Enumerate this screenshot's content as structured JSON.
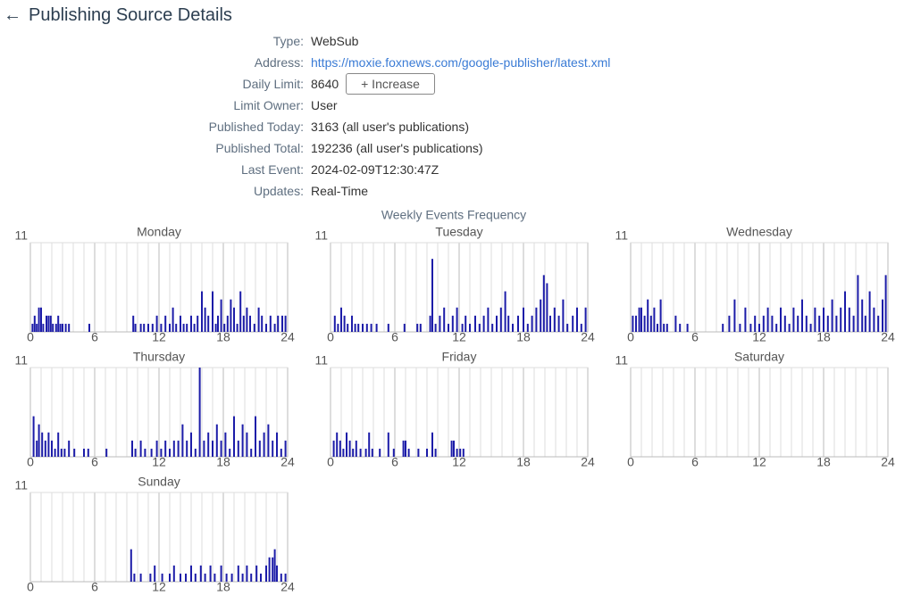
{
  "header": {
    "title": "Publishing Source Details"
  },
  "details": [
    {
      "label": "Type:",
      "value": "WebSub"
    },
    {
      "label": "Address:",
      "value": "https://moxie.foxnews.com/google-publisher/latest.xml"
    },
    {
      "label": "Daily Limit:",
      "value": "8640"
    },
    {
      "label": "Limit Owner:",
      "value": "User"
    },
    {
      "label": "Published Today:",
      "value": "3163 (all user's publications)"
    },
    {
      "label": "Published Total:",
      "value": "192236 (all user's publications)"
    },
    {
      "label": "Last Event:",
      "value": "2024-02-09T12:30:47Z"
    },
    {
      "label": "Updates:",
      "value": "Real-Time"
    }
  ],
  "increase_button": "+ Increase",
  "frequency": {
    "title": "Weekly Events Frequency"
  },
  "chart_data": [
    {
      "type": "bar",
      "title": "Monday",
      "color": "#1c1ca8",
      "xlim": [
        0,
        24
      ],
      "xticks": [
        0,
        6,
        12,
        18,
        24
      ],
      "minor_xticks": [
        0,
        1,
        2,
        3,
        4,
        5,
        6,
        7,
        8,
        9,
        10,
        11,
        12,
        13,
        14,
        15,
        16,
        17,
        18,
        19,
        20,
        21,
        22,
        23,
        24
      ],
      "ylim": [
        0,
        11
      ],
      "yticks": [
        11
      ],
      "x": [
        0.2,
        0.4,
        0.6,
        0.8,
        1.0,
        1.2,
        1.5,
        1.7,
        1.9,
        2.1,
        2.4,
        2.6,
        2.8,
        3.0,
        3.3,
        3.6,
        5.5,
        9.6,
        9.8,
        10.3,
        10.6,
        11.0,
        11.4,
        11.8,
        12.2,
        12.6,
        13.0,
        13.3,
        13.6,
        14.0,
        14.3,
        14.6,
        15.0,
        15.3,
        15.6,
        16.0,
        16.3,
        16.6,
        17.0,
        17.3,
        17.5,
        17.8,
        18.1,
        18.4,
        18.7,
        19.0,
        19.3,
        19.6,
        19.9,
        20.2,
        20.5,
        20.9,
        21.3,
        21.6,
        22.0,
        22.4,
        22.8,
        23.1,
        23.5,
        23.8
      ],
      "values": [
        1,
        2,
        1,
        3,
        3,
        1,
        2,
        2,
        2,
        1,
        1,
        2,
        1,
        1,
        1,
        1,
        1,
        2,
        1,
        1,
        1,
        1,
        1,
        2,
        1,
        2,
        1,
        3,
        1,
        2,
        1,
        1,
        2,
        1,
        2,
        5,
        3,
        2,
        5,
        1,
        2,
        4,
        1,
        2,
        4,
        3,
        1,
        5,
        2,
        3,
        2,
        1,
        3,
        2,
        1,
        2,
        1,
        2,
        2,
        2
      ]
    },
    {
      "type": "bar",
      "title": "Tuesday",
      "color": "#1c1ca8",
      "xlim": [
        0,
        24
      ],
      "xticks": [
        0,
        6,
        12,
        18,
        24
      ],
      "minor_xticks": [
        0,
        1,
        2,
        3,
        4,
        5,
        6,
        7,
        8,
        9,
        10,
        11,
        12,
        13,
        14,
        15,
        16,
        17,
        18,
        19,
        20,
        21,
        22,
        23,
        24
      ],
      "ylim": [
        0,
        11
      ],
      "yticks": [
        11
      ],
      "x": [
        0.4,
        0.7,
        1.0,
        1.3,
        1.6,
        2.0,
        2.3,
        2.6,
        3.0,
        3.4,
        3.8,
        4.3,
        5.4,
        6.9,
        8.1,
        8.4,
        9.3,
        9.5,
        9.8,
        10.2,
        10.6,
        11.0,
        11.4,
        11.8,
        12.3,
        12.6,
        13.0,
        13.5,
        13.9,
        14.3,
        14.7,
        15.1,
        15.5,
        15.9,
        16.3,
        16.6,
        17.0,
        17.5,
        18.0,
        18.4,
        18.8,
        19.2,
        19.6,
        19.9,
        20.2,
        20.5,
        20.9,
        21.3,
        21.7,
        22.1,
        22.6,
        23.0,
        23.4,
        23.8
      ],
      "values": [
        2,
        1,
        3,
        2,
        1,
        2,
        1,
        1,
        1,
        1,
        1,
        1,
        1,
        1,
        1,
        1,
        2,
        9,
        1,
        2,
        3,
        1,
        2,
        3,
        1,
        2,
        1,
        2,
        1,
        2,
        3,
        1,
        2,
        3,
        5,
        2,
        1,
        2,
        3,
        1,
        2,
        3,
        4,
        7,
        6,
        2,
        3,
        2,
        4,
        1,
        2,
        3,
        1,
        3
      ]
    },
    {
      "type": "bar",
      "title": "Wednesday",
      "color": "#1c1ca8",
      "xlim": [
        0,
        24
      ],
      "xticks": [
        0,
        6,
        12,
        18,
        24
      ],
      "minor_xticks": [
        0,
        1,
        2,
        3,
        4,
        5,
        6,
        7,
        8,
        9,
        10,
        11,
        12,
        13,
        14,
        15,
        16,
        17,
        18,
        19,
        20,
        21,
        22,
        23,
        24
      ],
      "ylim": [
        0,
        11
      ],
      "yticks": [
        11
      ],
      "x": [
        0.2,
        0.5,
        0.8,
        1.0,
        1.3,
        1.6,
        1.9,
        2.2,
        2.5,
        2.8,
        3.1,
        3.4,
        4.2,
        4.6,
        5.3,
        8.6,
        9.2,
        9.7,
        10.2,
        10.7,
        11.2,
        11.6,
        12.0,
        12.4,
        12.8,
        13.2,
        13.6,
        14.0,
        14.4,
        14.8,
        15.2,
        15.6,
        16.0,
        16.4,
        16.8,
        17.2,
        17.6,
        18.0,
        18.4,
        18.8,
        19.2,
        19.6,
        20.0,
        20.4,
        20.8,
        21.2,
        21.6,
        21.9,
        22.3,
        22.7,
        23.1,
        23.5,
        23.8
      ],
      "values": [
        2,
        2,
        3,
        3,
        2,
        4,
        2,
        3,
        1,
        4,
        1,
        1,
        2,
        1,
        1,
        1,
        2,
        4,
        1,
        3,
        1,
        2,
        1,
        2,
        3,
        2,
        1,
        3,
        2,
        1,
        3,
        2,
        4,
        2,
        1,
        3,
        2,
        3,
        2,
        4,
        2,
        3,
        5,
        3,
        2,
        7,
        4,
        2,
        5,
        3,
        2,
        4,
        7
      ]
    },
    {
      "type": "bar",
      "title": "Thursday",
      "color": "#1c1ca8",
      "xlim": [
        0,
        24
      ],
      "xticks": [
        0,
        6,
        12,
        18,
        24
      ],
      "minor_xticks": [
        0,
        1,
        2,
        3,
        4,
        5,
        6,
        7,
        8,
        9,
        10,
        11,
        12,
        13,
        14,
        15,
        16,
        17,
        18,
        19,
        20,
        21,
        22,
        23,
        24
      ],
      "ylim": [
        0,
        11
      ],
      "yticks": [
        11
      ],
      "x": [
        0.3,
        0.6,
        0.8,
        1.1,
        1.4,
        1.7,
        2.0,
        2.3,
        2.6,
        2.9,
        3.2,
        3.6,
        4.1,
        5.0,
        5.4,
        7.1,
        9.5,
        9.8,
        10.3,
        10.7,
        11.3,
        11.8,
        12.2,
        12.6,
        13.0,
        13.4,
        13.8,
        14.2,
        14.6,
        15.0,
        15.4,
        15.8,
        16.2,
        16.6,
        17.0,
        17.4,
        17.8,
        18.2,
        18.6,
        19.0,
        19.4,
        19.8,
        20.2,
        20.6,
        21.0,
        21.4,
        21.8,
        22.2,
        22.6,
        23.0,
        23.4,
        23.8
      ],
      "values": [
        5,
        2,
        4,
        3,
        2,
        3,
        2,
        1,
        3,
        1,
        1,
        2,
        1,
        1,
        1,
        1,
        2,
        1,
        2,
        1,
        1,
        2,
        1,
        2,
        1,
        2,
        2,
        4,
        2,
        3,
        1,
        11,
        2,
        3,
        2,
        4,
        2,
        3,
        1,
        5,
        2,
        4,
        3,
        1,
        5,
        2,
        3,
        4,
        2,
        3,
        1,
        2
      ]
    },
    {
      "type": "bar",
      "title": "Friday",
      "color": "#1c1ca8",
      "xlim": [
        0,
        24
      ],
      "xticks": [
        0,
        6,
        12,
        18,
        24
      ],
      "minor_xticks": [
        0,
        1,
        2,
        3,
        4,
        5,
        6,
        7,
        8,
        9,
        10,
        11,
        12,
        13,
        14,
        15,
        16,
        17,
        18,
        19,
        20,
        21,
        22,
        23,
        24
      ],
      "ylim": [
        0,
        11
      ],
      "yticks": [
        11
      ],
      "x": [
        0.3,
        0.6,
        0.9,
        1.2,
        1.5,
        1.8,
        2.1,
        2.4,
        2.8,
        3.3,
        3.6,
        3.9,
        4.6,
        5.4,
        5.9,
        6.8,
        7.0,
        7.3,
        8.2,
        9.0,
        9.5,
        9.8,
        11.3,
        11.5,
        11.8,
        12.1,
        12.4
      ],
      "values": [
        2,
        3,
        2,
        1,
        3,
        2,
        1,
        2,
        1,
        1,
        3,
        1,
        1,
        3,
        1,
        2,
        2,
        1,
        1,
        1,
        3,
        1,
        2,
        2,
        1,
        1,
        1
      ]
    },
    {
      "type": "bar",
      "title": "Saturday",
      "color": "#1c1ca8",
      "xlim": [
        0,
        24
      ],
      "xticks": [
        0,
        6,
        12,
        18,
        24
      ],
      "minor_xticks": [
        0,
        1,
        2,
        3,
        4,
        5,
        6,
        7,
        8,
        9,
        10,
        11,
        12,
        13,
        14,
        15,
        16,
        17,
        18,
        19,
        20,
        21,
        22,
        23,
        24
      ],
      "ylim": [
        0,
        11
      ],
      "yticks": [
        11
      ],
      "x": [],
      "values": []
    },
    {
      "type": "bar",
      "title": "Sunday",
      "color": "#1c1ca8",
      "xlim": [
        0,
        24
      ],
      "xticks": [
        0,
        6,
        12,
        18,
        24
      ],
      "minor_xticks": [
        0,
        1,
        2,
        3,
        4,
        5,
        6,
        7,
        8,
        9,
        10,
        11,
        12,
        13,
        14,
        15,
        16,
        17,
        18,
        19,
        20,
        21,
        22,
        23,
        24
      ],
      "ylim": [
        0,
        11
      ],
      "yticks": [
        11
      ],
      "x": [
        9.4,
        9.7,
        10.3,
        11.2,
        11.6,
        12.3,
        13.0,
        13.4,
        14.0,
        14.5,
        15.0,
        15.4,
        15.9,
        16.3,
        16.8,
        17.2,
        17.8,
        18.3,
        18.8,
        19.4,
        19.8,
        20.2,
        20.6,
        21.1,
        21.5,
        22.0,
        22.3,
        22.6,
        22.8,
        23.0,
        23.4,
        23.8
      ],
      "values": [
        4,
        1,
        1,
        1,
        2,
        1,
        1,
        2,
        1,
        1,
        2,
        1,
        2,
        1,
        2,
        1,
        2,
        1,
        1,
        2,
        1,
        2,
        1,
        2,
        1,
        2,
        3,
        3,
        4,
        2,
        1,
        1
      ]
    }
  ]
}
